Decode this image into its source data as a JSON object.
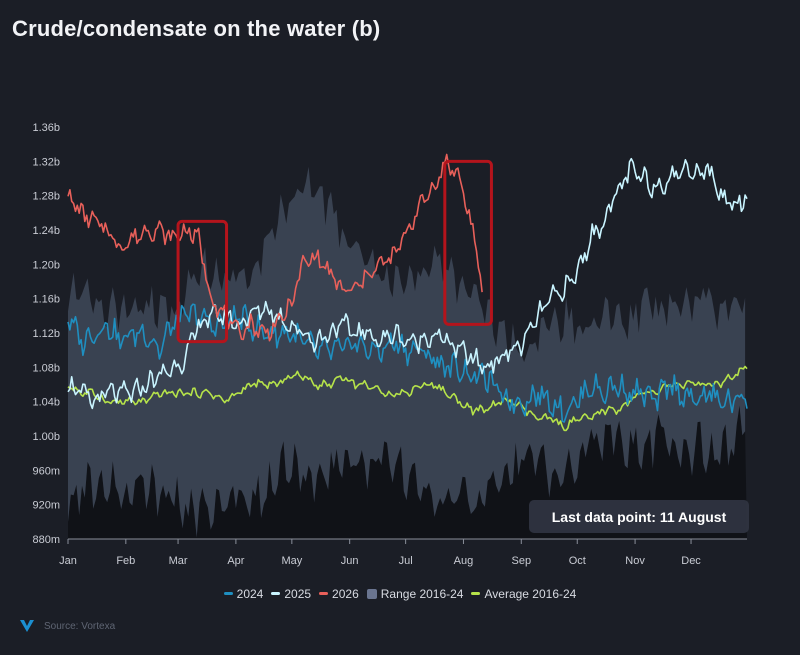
{
  "title": "Crude/condensate on the water (b)",
  "source": "Source: Vortexa",
  "annotation": "Last data point: 11 August",
  "colors": {
    "background": "#1b1e26",
    "s2024": "#1f8fc0",
    "s2025": "#c9f4ff",
    "s2026": "#e8605a",
    "range": "#3d4656",
    "rangeDark": "#0e1015",
    "average": "#b6e34a",
    "highlight": "#b4141c"
  },
  "chart_data": {
    "type": "line",
    "title": "Crude/condensate on the water (b)",
    "xlabel": "",
    "ylabel": "",
    "x_categories": [
      "Jan",
      "Feb",
      "Mar",
      "Apr",
      "May",
      "Jun",
      "Jul",
      "Aug",
      "Sep",
      "Oct",
      "Nov",
      "Dec"
    ],
    "y_ticks": [
      "880m",
      "920m",
      "960m",
      "1.00b",
      "1.04b",
      "1.08b",
      "1.12b",
      "1.16b",
      "1.20b",
      "1.24b",
      "1.28b",
      "1.32b",
      "1.36b"
    ],
    "ylim": [
      0.88,
      1.36
    ],
    "x_unit": "day of year",
    "grid": false,
    "legend": "bottom",
    "series": [
      {
        "name": "2024",
        "color": "#1f8fc0",
        "points": [
          [
            1,
            1.14
          ],
          [
            8,
            1.11
          ],
          [
            15,
            1.12
          ],
          [
            22,
            1.13
          ],
          [
            29,
            1.11
          ],
          [
            36,
            1.12
          ],
          [
            43,
            1.12
          ],
          [
            50,
            1.1
          ],
          [
            57,
            1.13
          ],
          [
            64,
            1.14
          ],
          [
            71,
            1.14
          ],
          [
            78,
            1.13
          ],
          [
            85,
            1.13
          ],
          [
            92,
            1.14
          ],
          [
            99,
            1.13
          ],
          [
            106,
            1.12
          ],
          [
            113,
            1.12
          ],
          [
            120,
            1.12
          ],
          [
            127,
            1.11
          ],
          [
            134,
            1.1
          ],
          [
            141,
            1.1
          ],
          [
            148,
            1.1
          ],
          [
            155,
            1.11
          ],
          [
            162,
            1.1
          ],
          [
            169,
            1.1
          ],
          [
            176,
            1.11
          ],
          [
            183,
            1.1
          ],
          [
            190,
            1.1
          ],
          [
            197,
            1.09
          ],
          [
            204,
            1.08
          ],
          [
            211,
            1.08
          ],
          [
            218,
            1.07
          ],
          [
            225,
            1.07
          ],
          [
            232,
            1.05
          ],
          [
            239,
            1.04
          ],
          [
            246,
            1.04
          ],
          [
            253,
            1.05
          ],
          [
            260,
            1.04
          ],
          [
            267,
            1.03
          ],
          [
            274,
            1.04
          ],
          [
            281,
            1.06
          ],
          [
            288,
            1.05
          ],
          [
            295,
            1.06
          ],
          [
            302,
            1.05
          ],
          [
            309,
            1.05
          ],
          [
            316,
            1.04
          ],
          [
            323,
            1.06
          ],
          [
            330,
            1.05
          ],
          [
            337,
            1.04
          ],
          [
            344,
            1.05
          ],
          [
            351,
            1.04
          ],
          [
            358,
            1.04
          ],
          [
            365,
            1.05
          ]
        ]
      },
      {
        "name": "2025",
        "color": "#c9f4ff",
        "points": [
          [
            1,
            1.06
          ],
          [
            8,
            1.05
          ],
          [
            15,
            1.04
          ],
          [
            22,
            1.05
          ],
          [
            29,
            1.05
          ],
          [
            36,
            1.05
          ],
          [
            43,
            1.06
          ],
          [
            50,
            1.07
          ],
          [
            57,
            1.08
          ],
          [
            64,
            1.09
          ],
          [
            71,
            1.13
          ],
          [
            78,
            1.14
          ],
          [
            85,
            1.14
          ],
          [
            92,
            1.13
          ],
          [
            99,
            1.14
          ],
          [
            106,
            1.15
          ],
          [
            113,
            1.14
          ],
          [
            120,
            1.13
          ],
          [
            127,
            1.12
          ],
          [
            134,
            1.11
          ],
          [
            141,
            1.12
          ],
          [
            148,
            1.13
          ],
          [
            155,
            1.12
          ],
          [
            162,
            1.12
          ],
          [
            169,
            1.11
          ],
          [
            176,
            1.12
          ],
          [
            183,
            1.11
          ],
          [
            190,
            1.11
          ],
          [
            197,
            1.12
          ],
          [
            204,
            1.11
          ],
          [
            211,
            1.1
          ],
          [
            218,
            1.09
          ],
          [
            225,
            1.08
          ],
          [
            232,
            1.09
          ],
          [
            239,
            1.1
          ],
          [
            246,
            1.11
          ],
          [
            253,
            1.14
          ],
          [
            260,
            1.16
          ],
          [
            267,
            1.17
          ],
          [
            274,
            1.19
          ],
          [
            281,
            1.23
          ],
          [
            288,
            1.25
          ],
          [
            295,
            1.28
          ],
          [
            302,
            1.31
          ],
          [
            309,
            1.3
          ],
          [
            316,
            1.29
          ],
          [
            323,
            1.3
          ],
          [
            330,
            1.31
          ],
          [
            337,
            1.31
          ],
          [
            344,
            1.31
          ],
          [
            351,
            1.28
          ],
          [
            358,
            1.27
          ],
          [
            365,
            1.28
          ]
        ]
      },
      {
        "name": "2026",
        "color": "#e8605a",
        "points": [
          [
            1,
            1.28
          ],
          [
            8,
            1.26
          ],
          [
            15,
            1.25
          ],
          [
            22,
            1.24
          ],
          [
            29,
            1.22
          ],
          [
            36,
            1.23
          ],
          [
            43,
            1.24
          ],
          [
            50,
            1.24
          ],
          [
            57,
            1.23
          ],
          [
            64,
            1.24
          ],
          [
            71,
            1.23
          ],
          [
            78,
            1.16
          ],
          [
            85,
            1.14
          ],
          [
            92,
            1.12
          ],
          [
            99,
            1.13
          ],
          [
            106,
            1.12
          ],
          [
            113,
            1.13
          ],
          [
            120,
            1.15
          ],
          [
            127,
            1.2
          ],
          [
            134,
            1.21
          ],
          [
            141,
            1.19
          ],
          [
            148,
            1.17
          ],
          [
            155,
            1.17
          ],
          [
            162,
            1.19
          ],
          [
            169,
            1.2
          ],
          [
            176,
            1.21
          ],
          [
            183,
            1.24
          ],
          [
            190,
            1.27
          ],
          [
            197,
            1.29
          ],
          [
            204,
            1.32
          ],
          [
            211,
            1.3
          ],
          [
            218,
            1.24
          ],
          [
            223,
            1.17
          ]
        ]
      },
      {
        "name": "Range 2016-24",
        "type": "area",
        "color": "#3d4656",
        "upper": [
          [
            1,
            1.17
          ],
          [
            15,
            1.16
          ],
          [
            30,
            1.14
          ],
          [
            45,
            1.15
          ],
          [
            60,
            1.15
          ],
          [
            75,
            1.2
          ],
          [
            85,
            1.18
          ],
          [
            100,
            1.2
          ],
          [
            110,
            1.23
          ],
          [
            120,
            1.28
          ],
          [
            130,
            1.29
          ],
          [
            140,
            1.27
          ],
          [
            150,
            1.23
          ],
          [
            160,
            1.2
          ],
          [
            170,
            1.18
          ],
          [
            180,
            1.18
          ],
          [
            190,
            1.19
          ],
          [
            200,
            1.21
          ],
          [
            210,
            1.18
          ],
          [
            220,
            1.16
          ],
          [
            230,
            1.13
          ],
          [
            240,
            1.11
          ],
          [
            250,
            1.1
          ],
          [
            260,
            1.13
          ],
          [
            270,
            1.14
          ],
          [
            280,
            1.12
          ],
          [
            290,
            1.14
          ],
          [
            300,
            1.13
          ],
          [
            310,
            1.15
          ],
          [
            320,
            1.14
          ],
          [
            330,
            1.15
          ],
          [
            340,
            1.17
          ],
          [
            350,
            1.15
          ],
          [
            358,
            1.16
          ],
          [
            365,
            1.16
          ]
        ],
        "lower": [
          [
            1,
            0.92
          ],
          [
            15,
            0.95
          ],
          [
            30,
            0.94
          ],
          [
            45,
            0.94
          ],
          [
            60,
            0.92
          ],
          [
            75,
            0.91
          ],
          [
            90,
            0.93
          ],
          [
            100,
            0.92
          ],
          [
            110,
            0.95
          ],
          [
            120,
            0.97
          ],
          [
            130,
            0.94
          ],
          [
            140,
            0.96
          ],
          [
            150,
            0.98
          ],
          [
            160,
            0.96
          ],
          [
            170,
            0.97
          ],
          [
            180,
            0.96
          ],
          [
            190,
            0.95
          ],
          [
            200,
            0.92
          ],
          [
            210,
            0.93
          ],
          [
            220,
            0.92
          ],
          [
            230,
            0.94
          ],
          [
            240,
            0.96
          ],
          [
            250,
            0.98
          ],
          [
            260,
            0.96
          ],
          [
            270,
            0.97
          ],
          [
            280,
            0.99
          ],
          [
            290,
            1.0
          ],
          [
            300,
            0.99
          ],
          [
            310,
            0.99
          ],
          [
            320,
            1.0
          ],
          [
            330,
            0.98
          ],
          [
            340,
            0.99
          ],
          [
            350,
            0.98
          ],
          [
            358,
            0.99
          ],
          [
            365,
            1.03
          ]
        ]
      },
      {
        "name": "Average 2016-24",
        "color": "#b6e34a",
        "points": [
          [
            1,
            1.06
          ],
          [
            8,
            1.05
          ],
          [
            15,
            1.05
          ],
          [
            22,
            1.04
          ],
          [
            29,
            1.04
          ],
          [
            36,
            1.04
          ],
          [
            43,
            1.04
          ],
          [
            50,
            1.05
          ],
          [
            57,
            1.05
          ],
          [
            64,
            1.05
          ],
          [
            71,
            1.05
          ],
          [
            78,
            1.05
          ],
          [
            85,
            1.04
          ],
          [
            92,
            1.05
          ],
          [
            99,
            1.06
          ],
          [
            106,
            1.06
          ],
          [
            113,
            1.06
          ],
          [
            120,
            1.07
          ],
          [
            127,
            1.07
          ],
          [
            134,
            1.06
          ],
          [
            141,
            1.06
          ],
          [
            148,
            1.07
          ],
          [
            155,
            1.06
          ],
          [
            162,
            1.06
          ],
          [
            169,
            1.05
          ],
          [
            176,
            1.05
          ],
          [
            183,
            1.05
          ],
          [
            190,
            1.06
          ],
          [
            197,
            1.06
          ],
          [
            204,
            1.05
          ],
          [
            211,
            1.04
          ],
          [
            218,
            1.03
          ],
          [
            225,
            1.03
          ],
          [
            232,
            1.04
          ],
          [
            239,
            1.04
          ],
          [
            246,
            1.03
          ],
          [
            253,
            1.02
          ],
          [
            260,
            1.02
          ],
          [
            267,
            1.01
          ],
          [
            274,
            1.02
          ],
          [
            281,
            1.02
          ],
          [
            288,
            1.03
          ],
          [
            295,
            1.03
          ],
          [
            302,
            1.04
          ],
          [
            309,
            1.05
          ],
          [
            316,
            1.05
          ],
          [
            323,
            1.06
          ],
          [
            330,
            1.06
          ],
          [
            337,
            1.06
          ],
          [
            344,
            1.06
          ],
          [
            351,
            1.06
          ],
          [
            358,
            1.07
          ],
          [
            365,
            1.08
          ]
        ]
      }
    ],
    "highlights": [
      {
        "x_start": 60,
        "x_end": 86,
        "y_start": 1.11,
        "y_end": 1.25
      },
      {
        "x_start": 203,
        "x_end": 228,
        "y_start": 1.13,
        "y_end": 1.32
      }
    ]
  },
  "legend": [
    {
      "label": "2024",
      "color": "#1f8fc0",
      "kind": "line"
    },
    {
      "label": "2025",
      "color": "#c9f4ff",
      "kind": "line"
    },
    {
      "label": "2026",
      "color": "#e8605a",
      "kind": "line"
    },
    {
      "label": "Range 2016-24",
      "color": "#6a7590",
      "kind": "box"
    },
    {
      "label": "Average 2016-24",
      "color": "#b6e34a",
      "kind": "line"
    }
  ]
}
